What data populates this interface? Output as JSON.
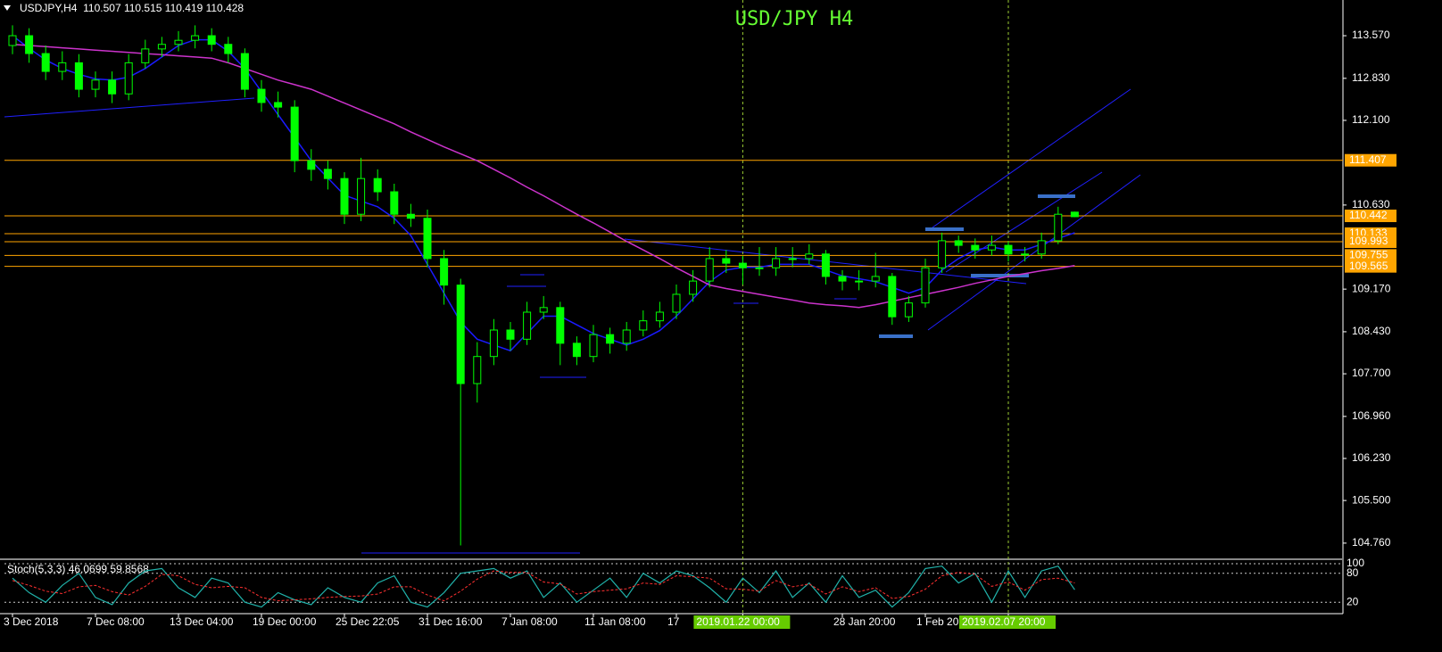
{
  "chart_data": {
    "type": "candlestick",
    "title": "USD/JPY  H4",
    "info": "USDJPY,H4  110.507 110.515 110.419 110.428",
    "candle_color": "#00ff00",
    "categories": [
      "3 Dec 2018",
      null,
      null,
      null,
      null,
      "7 Dec 08:00",
      null,
      null,
      null,
      null,
      "13 Dec 04:00",
      null,
      null,
      null,
      null,
      "19 Dec 00:00",
      null,
      null,
      null,
      null,
      "25 Dec 22:05",
      null,
      null,
      null,
      null,
      "31 Dec 16:00",
      null,
      null,
      null,
      null,
      "7 Jan 08:00",
      null,
      null,
      null,
      null,
      "11 Jan 08:00",
      null,
      null,
      null,
      null,
      "17",
      null,
      null,
      null,
      "2019.01.22 00:00",
      null,
      null,
      null,
      null,
      null,
      "28 Jan 20:00",
      null,
      null,
      null,
      null,
      "1 Feb 20",
      null,
      null,
      null,
      null,
      "2019.02.07 20:00",
      null,
      null,
      null,
      null
    ],
    "candles": [
      [
        113.4,
        113.75,
        113.25,
        113.57
      ],
      [
        113.57,
        113.7,
        113.1,
        113.26
      ],
      [
        113.26,
        113.4,
        112.8,
        112.95
      ],
      [
        112.95,
        113.3,
        112.8,
        113.1
      ],
      [
        113.1,
        113.25,
        112.5,
        112.64
      ],
      [
        112.64,
        112.95,
        112.5,
        112.8
      ],
      [
        112.8,
        112.95,
        112.4,
        112.56
      ],
      [
        112.56,
        113.25,
        112.45,
        113.1
      ],
      [
        113.1,
        113.5,
        113.0,
        113.34
      ],
      [
        113.34,
        113.55,
        113.2,
        113.42
      ],
      [
        113.42,
        113.65,
        113.3,
        113.49
      ],
      [
        113.49,
        113.75,
        113.35,
        113.57
      ],
      [
        113.57,
        113.7,
        113.3,
        113.42
      ],
      [
        113.42,
        113.55,
        113.1,
        113.26
      ],
      [
        113.26,
        113.35,
        112.5,
        112.64
      ],
      [
        112.64,
        112.8,
        112.25,
        112.41
      ],
      [
        112.41,
        112.6,
        112.15,
        112.33
      ],
      [
        112.33,
        112.45,
        111.2,
        111.4
      ],
      [
        111.4,
        111.6,
        111.05,
        111.25
      ],
      [
        111.25,
        111.4,
        110.9,
        111.09
      ],
      [
        111.09,
        111.2,
        110.3,
        110.47
      ],
      [
        110.47,
        111.45,
        110.35,
        111.09
      ],
      [
        111.09,
        111.25,
        110.7,
        110.86
      ],
      [
        110.86,
        111.0,
        110.3,
        110.47
      ],
      [
        110.47,
        110.65,
        110.25,
        110.4
      ],
      [
        110.4,
        110.55,
        109.55,
        109.7
      ],
      [
        109.7,
        109.85,
        108.9,
        109.24
      ],
      [
        109.24,
        109.35,
        104.72,
        107.53
      ],
      [
        107.53,
        108.25,
        107.2,
        108.0
      ],
      [
        108.0,
        108.65,
        107.85,
        108.46
      ],
      [
        108.46,
        108.6,
        108.1,
        108.3
      ],
      [
        108.3,
        108.95,
        108.2,
        108.77
      ],
      [
        108.77,
        109.05,
        108.65,
        108.85
      ],
      [
        108.85,
        108.95,
        107.85,
        108.23
      ],
      [
        108.23,
        108.35,
        107.85,
        108.0
      ],
      [
        108.0,
        108.55,
        107.9,
        108.38
      ],
      [
        108.38,
        108.5,
        108.05,
        108.23
      ],
      [
        108.23,
        108.6,
        108.1,
        108.46
      ],
      [
        108.46,
        108.8,
        108.35,
        108.62
      ],
      [
        108.62,
        108.95,
        108.5,
        108.77
      ],
      [
        108.77,
        109.25,
        108.65,
        109.08
      ],
      [
        109.08,
        109.5,
        108.95,
        109.31
      ],
      [
        109.31,
        109.9,
        109.2,
        109.7
      ],
      [
        109.7,
        109.85,
        109.45,
        109.62
      ],
      [
        109.62,
        109.75,
        109.25,
        109.54
      ],
      [
        109.54,
        109.9,
        109.4,
        109.54
      ],
      [
        109.54,
        109.9,
        109.4,
        109.7
      ],
      [
        109.7,
        109.9,
        109.55,
        109.7
      ],
      [
        109.7,
        109.95,
        109.6,
        109.78
      ],
      [
        109.78,
        109.85,
        109.25,
        109.39
      ],
      [
        109.39,
        109.5,
        109.15,
        109.31
      ],
      [
        109.31,
        109.5,
        109.15,
        109.31
      ],
      [
        109.31,
        109.8,
        109.2,
        109.39
      ],
      [
        109.39,
        109.45,
        108.55,
        108.69
      ],
      [
        108.69,
        109.05,
        108.6,
        108.93
      ],
      [
        108.93,
        109.7,
        108.85,
        109.54
      ],
      [
        109.54,
        110.15,
        109.45,
        110.01
      ],
      [
        110.01,
        110.1,
        109.8,
        109.93
      ],
      [
        109.93,
        110.05,
        109.7,
        109.85
      ],
      [
        109.85,
        110.1,
        109.75,
        109.93
      ],
      [
        109.93,
        110.0,
        109.65,
        109.78
      ],
      [
        109.78,
        109.9,
        109.65,
        109.78
      ],
      [
        109.78,
        110.15,
        109.7,
        110.01
      ],
      [
        110.01,
        110.6,
        109.95,
        110.47
      ],
      [
        110.507,
        110.515,
        110.419,
        110.428
      ]
    ],
    "moving_averages": [
      {
        "color": "#1a1aff",
        "values": [
          113.57,
          113.35,
          113.15,
          113.0,
          112.9,
          112.82,
          112.8,
          112.85,
          113.0,
          113.2,
          113.4,
          113.5,
          113.5,
          113.3,
          113.0,
          112.6,
          112.2,
          111.8,
          111.4,
          111.1,
          110.8,
          110.7,
          110.6,
          110.4,
          110.1,
          109.6,
          109.1,
          108.6,
          108.3,
          108.2,
          108.1,
          108.4,
          108.7,
          108.7,
          108.55,
          108.4,
          108.3,
          108.2,
          108.3,
          108.45,
          108.7,
          109.0,
          109.3,
          109.5,
          109.55,
          109.55,
          109.6,
          109.6,
          109.6,
          109.5,
          109.4,
          109.35,
          109.3,
          109.2,
          109.1,
          109.2,
          109.5,
          109.7,
          109.85,
          109.9,
          109.85,
          109.85,
          109.95,
          110.05,
          110.15
        ]
      },
      {
        "color": "#cc33cc",
        "values": [
          113.42,
          113.4,
          113.38,
          113.36,
          113.34,
          113.32,
          113.3,
          113.28,
          113.26,
          113.24,
          113.22,
          113.2,
          113.18,
          113.1,
          113.0,
          112.9,
          112.8,
          112.72,
          112.64,
          112.52,
          112.4,
          112.28,
          112.16,
          112.04,
          111.9,
          111.77,
          111.64,
          111.52,
          111.4,
          111.25,
          111.1,
          110.94,
          110.79,
          110.63,
          110.47,
          110.32,
          110.16,
          110.0,
          109.85,
          109.7,
          109.54,
          109.39,
          109.24,
          109.18,
          109.13,
          109.08,
          109.03,
          108.98,
          108.93,
          108.9,
          108.88,
          108.85,
          108.9,
          108.96,
          109.02,
          109.08,
          109.14,
          109.2,
          109.27,
          109.33,
          109.39,
          109.44,
          109.49,
          109.53,
          109.58
        ]
      }
    ],
    "ylim": [
      104.48,
      114.19
    ],
    "yticks": [
      {
        "value": 113.57,
        "label": "113.570"
      },
      {
        "value": 112.83,
        "label": "112.830"
      },
      {
        "value": 112.1,
        "label": "112.100"
      },
      {
        "value": 110.63,
        "label": "110.630"
      },
      {
        "value": 109.17,
        "label": "109.170"
      },
      {
        "value": 108.43,
        "label": "108.430"
      },
      {
        "value": 107.7,
        "label": "107.700"
      },
      {
        "value": 106.96,
        "label": "106.960"
      },
      {
        "value": 106.23,
        "label": "106.230"
      },
      {
        "value": 105.5,
        "label": "105.500"
      },
      {
        "value": 104.76,
        "label": "104.760"
      }
    ],
    "levels": [
      {
        "value": 111.407,
        "color": "#ffa500"
      },
      {
        "value": 110.442,
        "color": "#ffa500"
      },
      {
        "value": 110.133,
        "color": "#ffa500"
      },
      {
        "value": 109.993,
        "color": "#ffa500"
      },
      {
        "value": 109.755,
        "color": "#ffa500"
      },
      {
        "value": 109.565,
        "color": "#ffa500"
      }
    ],
    "stochastic": {
      "label": "Stoch(5,3,3) 46.0699 59.8568",
      "ylim": [
        0,
        100
      ],
      "yticks": [
        100,
        80,
        20
      ],
      "main": {
        "color": "#20b2aa",
        "values": [
          70,
          40,
          20,
          55,
          80,
          30,
          15,
          60,
          85,
          90,
          50,
          30,
          70,
          60,
          20,
          10,
          40,
          25,
          15,
          50,
          30,
          20,
          60,
          75,
          20,
          10,
          40,
          80,
          85,
          90,
          70,
          85,
          30,
          60,
          20,
          45,
          70,
          30,
          80,
          60,
          85,
          75,
          50,
          20,
          70,
          40,
          85,
          30,
          60,
          20,
          75,
          30,
          45,
          10,
          40,
          90,
          95,
          60,
          80,
          20,
          85,
          30,
          85,
          95,
          46
        ]
      },
      "signal": {
        "color": "#ff3030",
        "values": [
          65,
          55,
          43,
          38,
          52,
          55,
          42,
          35,
          53,
          78,
          75,
          57,
          50,
          53,
          50,
          30,
          23,
          25,
          27,
          30,
          32,
          33,
          37,
          52,
          52,
          35,
          23,
          43,
          68,
          85,
          82,
          82,
          62,
          58,
          37,
          42,
          45,
          48,
          60,
          57,
          75,
          73,
          70,
          48,
          47,
          43,
          65,
          52,
          58,
          37,
          52,
          42,
          50,
          28,
          32,
          47,
          75,
          82,
          78,
          53,
          62,
          45,
          67,
          70,
          60
        ]
      }
    }
  }
}
